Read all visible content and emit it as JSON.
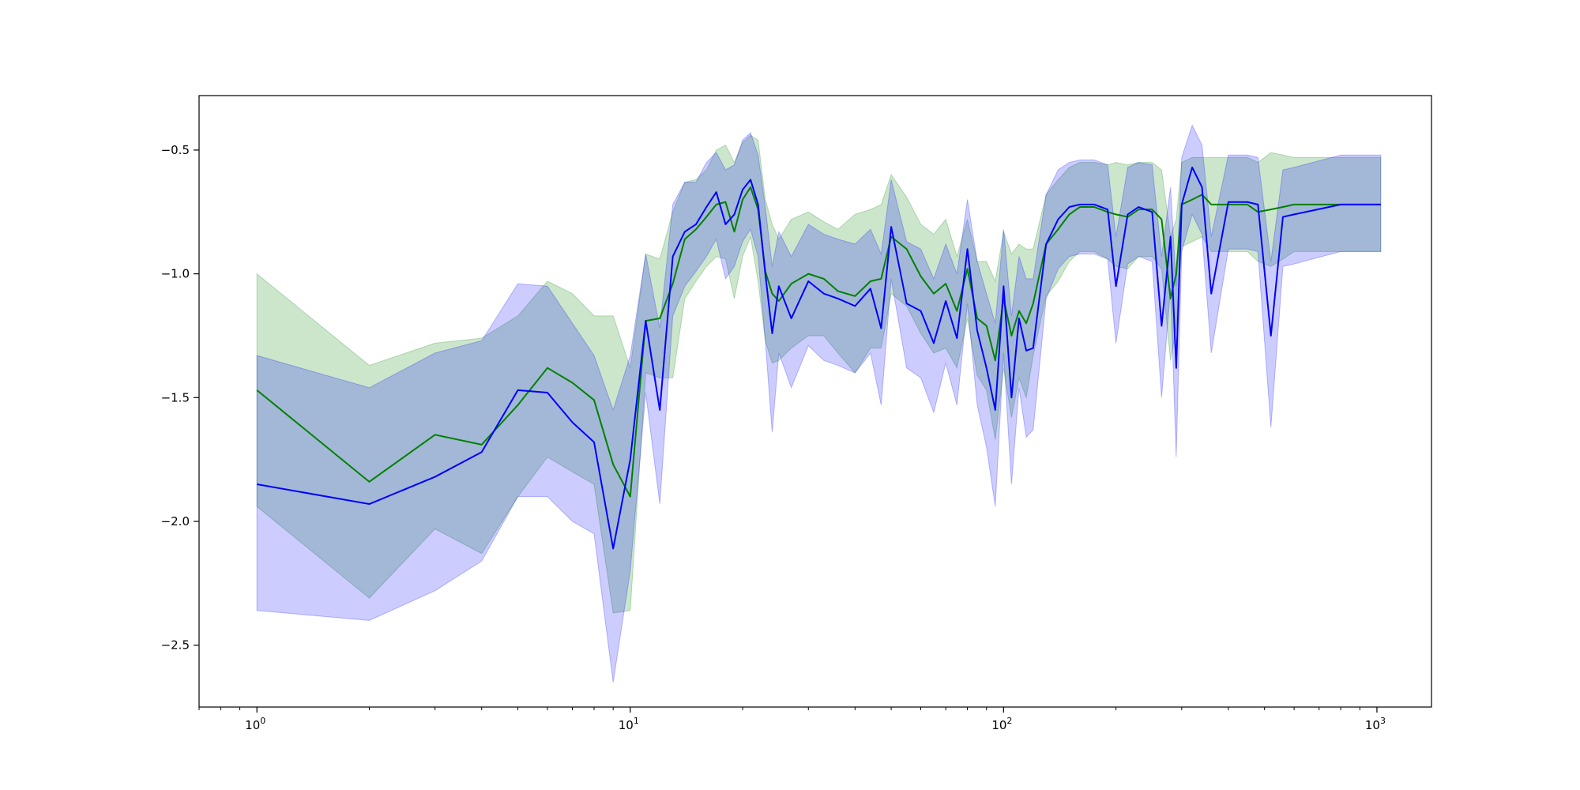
{
  "chart_data": {
    "type": "line",
    "title": "",
    "xlabel": "",
    "ylabel": "",
    "xscale": "log",
    "xlim": [
      0.7,
      1400
    ],
    "ylim": [
      -2.75,
      -0.28
    ],
    "grid": false,
    "legend": "none",
    "x_ticks": [
      {
        "value": 1,
        "base": "10",
        "exp": "0"
      },
      {
        "value": 10,
        "base": "10",
        "exp": "1"
      },
      {
        "value": 100,
        "base": "10",
        "exp": "2"
      },
      {
        "value": 1000,
        "base": "10",
        "exp": "3"
      }
    ],
    "y_ticks": [
      {
        "value": -0.5,
        "label": "−0.5"
      },
      {
        "value": -1.0,
        "label": "−1.0"
      },
      {
        "value": -1.5,
        "label": "−1.5"
      },
      {
        "value": -2.0,
        "label": "−2.0"
      },
      {
        "value": -2.5,
        "label": "−2.5"
      }
    ],
    "series": [
      {
        "color": "#008000",
        "band_color": "#008000",
        "x": [
          1,
          2,
          3,
          4,
          5,
          6,
          7,
          8,
          9,
          10,
          11,
          12,
          13,
          14,
          15,
          16,
          17,
          18,
          19,
          20,
          21,
          22,
          23,
          24,
          25,
          27,
          30,
          33,
          36,
          40,
          44,
          47,
          50,
          55,
          60,
          65,
          70,
          75,
          80,
          85,
          90,
          95,
          100,
          105,
          110,
          115,
          120,
          130,
          140,
          150,
          160,
          175,
          190,
          200,
          215,
          230,
          250,
          265,
          280,
          290,
          300,
          320,
          340,
          360,
          400,
          450,
          480,
          520,
          560,
          600,
          800,
          1024
        ],
        "y": [
          -1.47,
          -1.84,
          -1.65,
          -1.69,
          -1.53,
          -1.38,
          -1.44,
          -1.51,
          -1.77,
          -1.9,
          -1.19,
          -1.18,
          -1.04,
          -0.86,
          -0.82,
          -0.77,
          -0.72,
          -0.71,
          -0.83,
          -0.7,
          -0.65,
          -0.74,
          -0.99,
          -1.08,
          -1.11,
          -1.04,
          -1.0,
          -1.02,
          -1.07,
          -1.09,
          -1.03,
          -1.02,
          -0.85,
          -0.9,
          -1.01,
          -1.08,
          -1.04,
          -1.15,
          -0.98,
          -1.18,
          -1.21,
          -1.35,
          -1.1,
          -1.25,
          -1.15,
          -1.2,
          -1.12,
          -0.88,
          -0.82,
          -0.76,
          -0.73,
          -0.73,
          -0.75,
          -0.76,
          -0.77,
          -0.74,
          -0.74,
          -0.78,
          -1.1,
          -1.0,
          -0.72,
          -0.7,
          -0.68,
          -0.72,
          -0.72,
          -0.72,
          -0.75,
          -0.74,
          -0.73,
          -0.72,
          -0.72,
          -0.72
        ],
        "upper": [
          -1.0,
          -1.37,
          -1.28,
          -1.26,
          -1.17,
          -1.03,
          -1.08,
          -1.17,
          -1.17,
          -1.38,
          -0.92,
          -0.94,
          -0.75,
          -0.63,
          -0.62,
          -0.58,
          -0.5,
          -0.48,
          -0.55,
          -0.47,
          -0.44,
          -0.46,
          -0.7,
          -0.8,
          -0.86,
          -0.78,
          -0.75,
          -0.79,
          -0.82,
          -0.76,
          -0.74,
          -0.72,
          -0.6,
          -0.69,
          -0.8,
          -0.84,
          -0.78,
          -0.93,
          -0.78,
          -0.95,
          -0.95,
          -1.03,
          -0.83,
          -0.92,
          -0.88,
          -0.9,
          -0.9,
          -0.68,
          -0.62,
          -0.57,
          -0.55,
          -0.55,
          -0.56,
          -0.55,
          -0.56,
          -0.55,
          -0.55,
          -0.58,
          -0.85,
          -0.78,
          -0.55,
          -0.53,
          -0.53,
          -0.53,
          -0.53,
          -0.53,
          -0.55,
          -0.51,
          -0.52,
          -0.53,
          -0.53,
          -0.53
        ],
        "lower": [
          -1.94,
          -2.31,
          -2.03,
          -2.13,
          -1.9,
          -1.74,
          -1.8,
          -1.85,
          -2.37,
          -2.36,
          -1.4,
          -1.42,
          -1.42,
          -1.1,
          -1.03,
          -0.97,
          -0.93,
          -0.94,
          -1.1,
          -0.93,
          -0.85,
          -1.03,
          -1.27,
          -1.36,
          -1.35,
          -1.3,
          -1.25,
          -1.25,
          -1.32,
          -1.4,
          -1.3,
          -1.3,
          -1.08,
          -1.13,
          -1.24,
          -1.32,
          -1.3,
          -1.38,
          -1.18,
          -1.41,
          -1.47,
          -1.67,
          -1.38,
          -1.58,
          -1.42,
          -1.5,
          -1.33,
          -1.09,
          -1.03,
          -0.95,
          -0.91,
          -0.91,
          -0.94,
          -0.97,
          -0.98,
          -0.93,
          -0.93,
          -0.98,
          -1.35,
          -1.22,
          -0.89,
          -0.87,
          -0.85,
          -0.91,
          -0.91,
          -0.91,
          -0.95,
          -0.97,
          -0.94,
          -0.91,
          -0.91,
          -0.91
        ]
      },
      {
        "color": "#0000ff",
        "band_color": "#0000ff",
        "x": [
          1,
          2,
          3,
          4,
          5,
          6,
          7,
          8,
          9,
          10,
          11,
          12,
          13,
          14,
          15,
          16,
          17,
          18,
          19,
          20,
          21,
          22,
          23,
          24,
          25,
          27,
          30,
          33,
          36,
          40,
          44,
          47,
          50,
          55,
          60,
          65,
          70,
          75,
          80,
          85,
          90,
          95,
          100,
          105,
          110,
          115,
          120,
          130,
          140,
          150,
          160,
          175,
          190,
          200,
          215,
          230,
          250,
          265,
          280,
          290,
          300,
          320,
          340,
          360,
          400,
          450,
          480,
          520,
          560,
          600,
          800,
          1024
        ],
        "y": [
          -1.85,
          -1.93,
          -1.82,
          -1.72,
          -1.47,
          -1.48,
          -1.6,
          -1.68,
          -2.11,
          -1.75,
          -1.19,
          -1.55,
          -0.93,
          -0.83,
          -0.8,
          -0.73,
          -0.67,
          -0.8,
          -0.76,
          -0.66,
          -0.62,
          -0.72,
          -1.0,
          -1.24,
          -1.05,
          -1.18,
          -1.03,
          -1.08,
          -1.1,
          -1.13,
          -1.06,
          -1.22,
          -0.81,
          -1.12,
          -1.15,
          -1.28,
          -1.11,
          -1.26,
          -0.9,
          -1.23,
          -1.38,
          -1.55,
          -1.05,
          -1.5,
          -1.18,
          -1.31,
          -1.3,
          -0.88,
          -0.78,
          -0.73,
          -0.72,
          -0.72,
          -0.74,
          -1.05,
          -0.76,
          -0.73,
          -0.75,
          -1.21,
          -0.85,
          -1.38,
          -0.72,
          -0.57,
          -0.65,
          -1.08,
          -0.71,
          -0.71,
          -0.72,
          -1.25,
          -0.77,
          -0.76,
          -0.72,
          -0.72
        ],
        "upper": [
          -1.33,
          -1.46,
          -1.32,
          -1.27,
          -1.04,
          -1.05,
          -1.2,
          -1.33,
          -1.55,
          -1.33,
          -0.92,
          -1.22,
          -0.72,
          -0.63,
          -0.63,
          -0.55,
          -0.51,
          -0.58,
          -0.56,
          -0.46,
          -0.43,
          -0.52,
          -0.73,
          -0.97,
          -0.83,
          -0.93,
          -0.8,
          -0.84,
          -0.86,
          -0.88,
          -0.82,
          -0.92,
          -0.62,
          -0.87,
          -0.9,
          -1.02,
          -0.88,
          -1.0,
          -0.7,
          -0.95,
          -1.08,
          -1.2,
          -0.82,
          -1.17,
          -0.93,
          -1.02,
          -1.02,
          -0.68,
          -0.58,
          -0.55,
          -0.54,
          -0.54,
          -0.56,
          -0.85,
          -0.57,
          -0.55,
          -0.56,
          -0.93,
          -0.65,
          -1.05,
          -0.53,
          -0.4,
          -0.48,
          -0.85,
          -0.52,
          -0.52,
          -0.53,
          -0.95,
          -0.58,
          -0.57,
          -0.52,
          -0.52
        ],
        "lower": [
          -2.36,
          -2.4,
          -2.28,
          -2.16,
          -1.9,
          -1.9,
          -2.0,
          -2.05,
          -2.65,
          -2.2,
          -1.48,
          -1.93,
          -1.17,
          -1.05,
          -0.99,
          -0.93,
          -0.86,
          -1.02,
          -0.97,
          -0.87,
          -0.82,
          -0.93,
          -1.27,
          -1.64,
          -1.32,
          -1.46,
          -1.29,
          -1.35,
          -1.37,
          -1.4,
          -1.32,
          -1.53,
          -1.02,
          -1.38,
          -1.42,
          -1.56,
          -1.36,
          -1.53,
          -1.12,
          -1.53,
          -1.7,
          -1.94,
          -1.32,
          -1.85,
          -1.46,
          -1.66,
          -1.63,
          -1.1,
          -0.98,
          -0.93,
          -0.92,
          -0.92,
          -0.94,
          -1.28,
          -0.96,
          -0.93,
          -0.95,
          -1.5,
          -1.06,
          -1.74,
          -0.91,
          -0.76,
          -0.84,
          -1.32,
          -0.9,
          -0.9,
          -0.91,
          -1.62,
          -0.97,
          -0.96,
          -0.91,
          -0.91
        ]
      }
    ]
  }
}
